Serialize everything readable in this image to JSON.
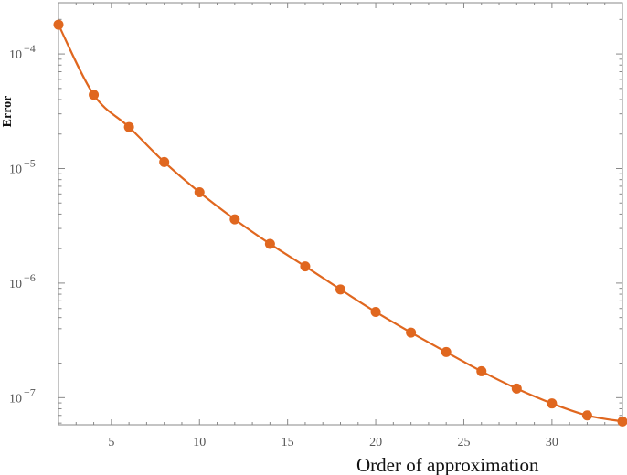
{
  "chart_data": {
    "type": "line",
    "xlabel": "Order of approximation",
    "ylabel": "Error",
    "xlim": [
      2,
      34
    ],
    "ylim": [
      5.8e-08,
      0.00028
    ],
    "yscale": "log",
    "grid": false,
    "legend": "none",
    "x_ticks": [
      5,
      10,
      15,
      20,
      25,
      30
    ],
    "y_ticks": [
      {
        "value": 0.0001,
        "base": "10",
        "exp": "−4"
      },
      {
        "value": 1e-05,
        "base": "10",
        "exp": "−5"
      },
      {
        "value": 1e-06,
        "base": "10",
        "exp": "−6"
      },
      {
        "value": 1e-07,
        "base": "10",
        "exp": "−7"
      }
    ],
    "series": [
      {
        "x": [
          2,
          4,
          6,
          8,
          10,
          12,
          14,
          16,
          18,
          20,
          22,
          24,
          26,
          28,
          30,
          32,
          34
        ],
        "y": [
          0.00018,
          4.4e-05,
          2.3e-05,
          1.14e-05,
          6.2e-06,
          3.6e-06,
          2.2e-06,
          1.4e-06,
          8.8e-07,
          5.6e-07,
          3.7e-07,
          2.5e-07,
          1.7e-07,
          1.2e-07,
          8.9e-08,
          7e-08,
          6.2e-08
        ]
      }
    ],
    "colors": {
      "series": "#e0671f",
      "axis": "#888888"
    }
  }
}
